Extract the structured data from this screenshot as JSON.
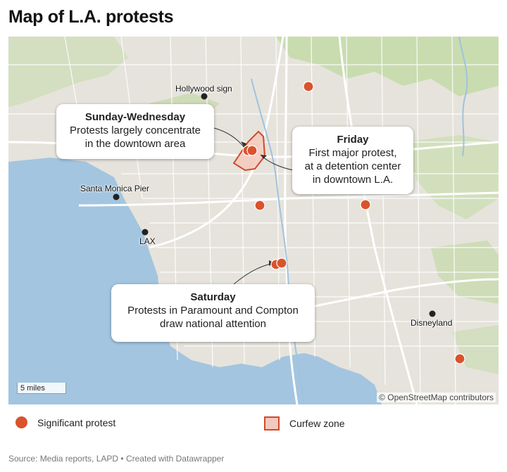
{
  "title": "Map of L.A. protests",
  "map": {
    "place_labels": {
      "hollywood_sign": "Hollywood sign",
      "santa_monica_pier": "Santa Monica Pier",
      "lax": "LAX",
      "disneyland": "Disneyland"
    },
    "callouts": {
      "sunday_wednesday": {
        "head": "Sunday-Wednesday",
        "body": "Protests largely concentrate\nin the downtown area"
      },
      "friday": {
        "head": "Friday",
        "body": "First major protest,\nat a detention center\nin downtown L.A."
      },
      "saturday": {
        "head": "Saturday",
        "body": "Protests in Paramount and Compton\ndraw national attention"
      }
    },
    "scale_label": "5 miles",
    "attribution": "© OpenStreetMap contributors"
  },
  "legend": {
    "protest_label": "Significant protest",
    "curfew_label": "Curfew zone"
  },
  "source": "Source: Media reports, LAPD • Created with Datawrapper",
  "colors": {
    "protest": "#d9532c",
    "curfew_fill": "#f3c9bd",
    "curfew_stroke": "#cf4a2a",
    "water": "#a3c5e0",
    "land": "#e6e3dc",
    "park": "#c9dcb0"
  }
}
